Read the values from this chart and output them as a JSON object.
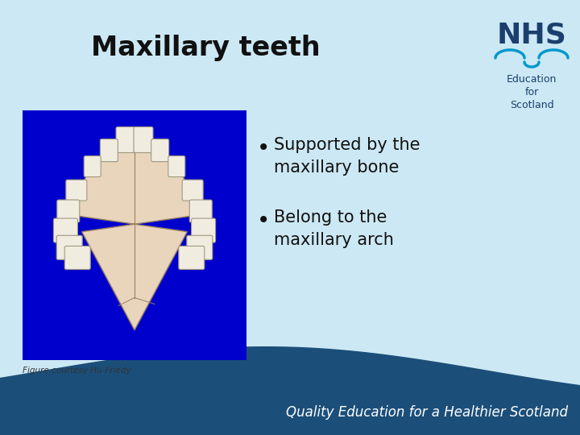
{
  "bg_color": "#cce8f4",
  "title": "Maxillary teeth",
  "title_fontsize": 24,
  "title_color": "#111111",
  "title_fontweight": "bold",
  "bullet_points": [
    "Supported by the\nmaxillary bone",
    "Belong to the\nmaxillary arch"
  ],
  "bullet_fontsize": 15,
  "bullet_color": "#111111",
  "figure_caption": "Figure courtesy Hu-Friedy",
  "caption_fontsize": 7.5,
  "caption_color": "#333333",
  "footer_text": "Quality Education for a Healthier Scotland",
  "footer_color": "#ffffff",
  "footer_fontsize": 12,
  "footer_bg_color": "#1b4f7a",
  "nhs_text": "NHS",
  "nhs_sub": "Education\nfor\nScotland",
  "nhs_dark": "#1b3f6e",
  "nhs_cyan": "#0099cc",
  "img_bg": "#0000cc",
  "palate_color": "#e8d5bb",
  "palate_edge": "#9a8060",
  "tooth_color": "#f0ece0",
  "tooth_edge": "#a09880"
}
